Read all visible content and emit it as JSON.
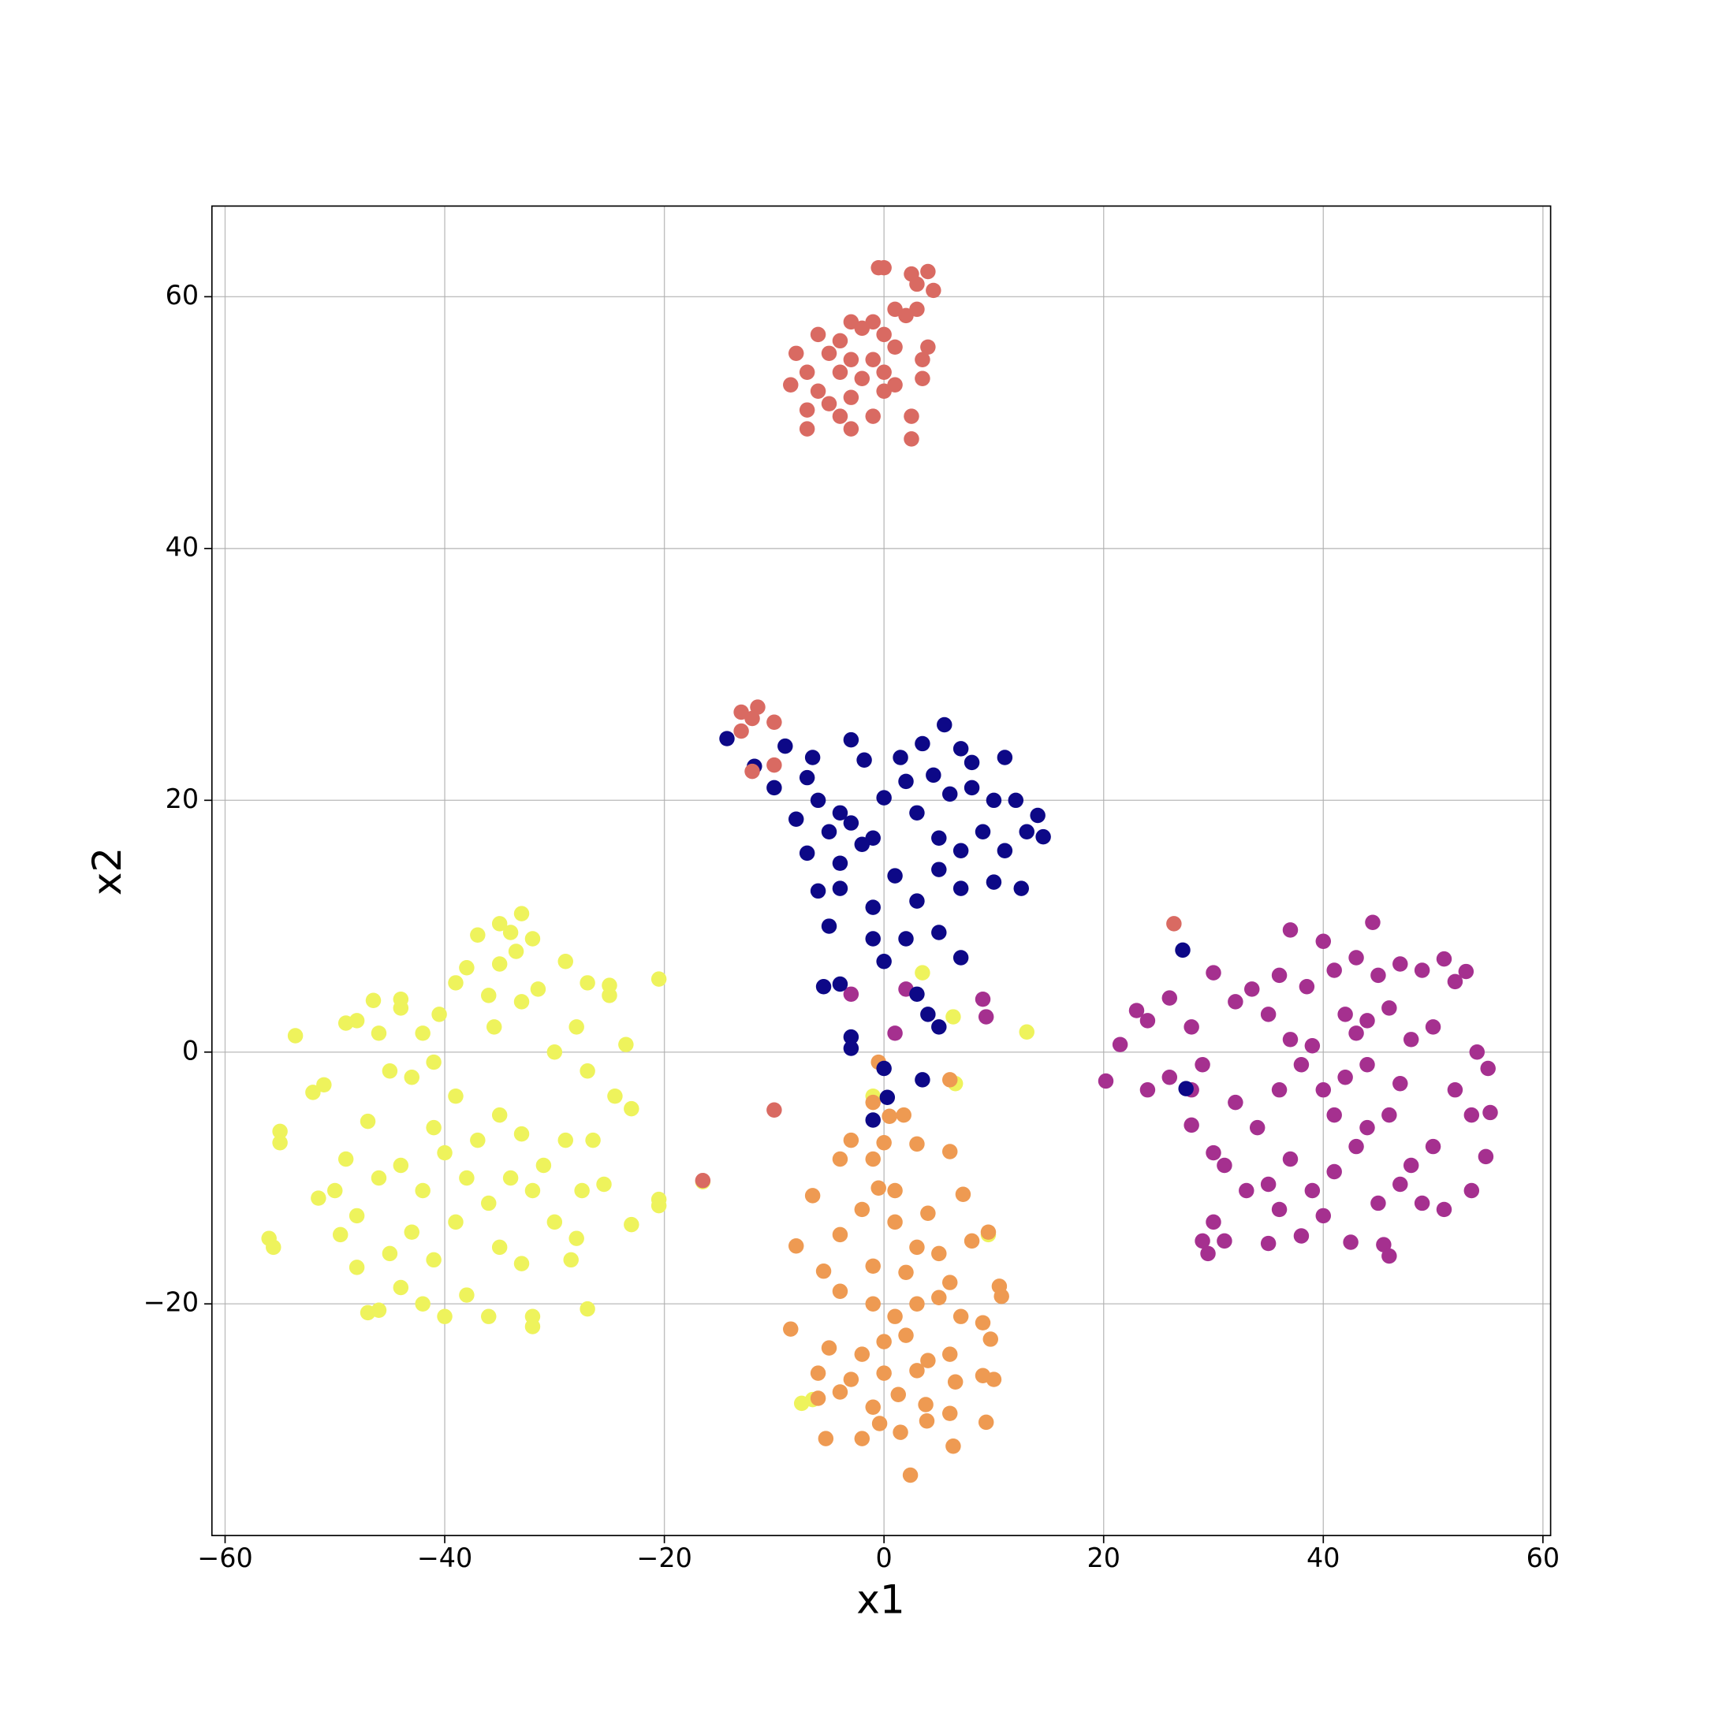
{
  "chart_data": {
    "type": "scatter",
    "xlabel": "x1",
    "ylabel": "x2",
    "xlim": [
      -61.2,
      60.7
    ],
    "ylim": [
      -38.4,
      67.2
    ],
    "xticks": [
      {
        "value": -60,
        "label": "−60"
      },
      {
        "value": -40,
        "label": "−40"
      },
      {
        "value": -20,
        "label": "−20"
      },
      0,
      20,
      40,
      60
    ],
    "yticks": [
      {
        "value": -20,
        "label": "−20"
      },
      0,
      20,
      40,
      60
    ],
    "grid": true,
    "series": [
      {
        "color": "#eef35c",
        "x": [
          -53.6,
          -55,
          -55,
          -56,
          -55.6,
          -52,
          -51,
          -49,
          -48,
          -46.5,
          -46,
          -44,
          -44,
          -42,
          -40.5,
          -41,
          -39,
          -38,
          -37,
          -35,
          -34,
          -33,
          -32,
          -33.5,
          -35,
          -36,
          -35.5,
          -33,
          -31.5,
          -30,
          -29,
          -28,
          -27,
          -25,
          -25,
          -23.5,
          -20.5,
          -27,
          -24.5,
          -23,
          -26.5,
          -29,
          -31,
          -33,
          -35,
          -37,
          -39,
          -41,
          -43,
          -45,
          -47,
          -49,
          -50,
          -51.5,
          -49.5,
          -48,
          -46,
          -44,
          -42,
          -40,
          -38,
          -36,
          -34,
          -32,
          -30,
          -27.5,
          -25.5,
          -23,
          -20.5,
          -20.5,
          -28,
          -28.5,
          -27,
          -32,
          -32,
          -36,
          -38,
          -40,
          -42,
          -44,
          -47,
          -46,
          -48,
          -45,
          -43,
          -41,
          -39,
          -35,
          -33,
          -16.5,
          13,
          9.5,
          6.5,
          6.3,
          3.5,
          -7.5,
          -6.5,
          -1
        ],
        "y": [
          1.3,
          -6.3,
          -7.2,
          -14.8,
          -15.5,
          -3.2,
          -2.6,
          2.3,
          2.5,
          4.1,
          1.5,
          4.2,
          3.5,
          1.5,
          3,
          -0.8,
          5.5,
          6.7,
          9.3,
          10.2,
          9.5,
          11,
          9,
          8,
          7,
          4.5,
          2,
          4,
          5,
          0,
          7.2,
          2,
          5.5,
          5.3,
          4.5,
          0.6,
          5.8,
          -1.5,
          -3.5,
          -4.5,
          -7,
          -7,
          -9,
          -6.5,
          -5,
          -7,
          -3.5,
          -6,
          -2,
          -1.5,
          -5.5,
          -8.5,
          -11,
          -11.6,
          -14.5,
          -13,
          -10,
          -9,
          -11,
          -8,
          -10,
          -12,
          -10,
          -11,
          -13.5,
          -11,
          -10.5,
          -13.7,
          -11.7,
          -12.2,
          -14.8,
          -16.5,
          -20.4,
          -21,
          -21.8,
          -21,
          -19.3,
          -21,
          -20,
          -18.7,
          -20.7,
          -20.5,
          -17.1,
          -16,
          -14.3,
          -16.5,
          -13.5,
          -15.5,
          -16.8,
          -10.3,
          1.6,
          -14.5,
          -2.5,
          2.8,
          6.3,
          -27.9,
          -27.6,
          -3.5
        ]
      },
      {
        "color": "#ee9a52",
        "x": [
          -0.5,
          -1,
          0.5,
          1.8,
          0,
          -3,
          -4,
          3,
          6,
          -1,
          -6.5,
          -0.5,
          1,
          7.2,
          -8,
          -4,
          -2,
          1,
          4,
          3,
          5,
          8,
          9.5,
          -5.5,
          -1,
          2,
          6,
          10.5,
          10.7,
          -4,
          -1,
          1,
          3,
          5,
          7,
          9,
          -8.5,
          -5,
          -2,
          0,
          2,
          4,
          6,
          9.7,
          -6,
          -3,
          0,
          3,
          6.5,
          9,
          10,
          -6,
          -4,
          -1,
          1.3,
          3.8,
          6,
          9.3,
          -5.3,
          -2,
          1.5,
          3.9,
          6.3,
          2.4,
          -0.4,
          6
        ],
        "y": [
          -0.8,
          -4,
          -5.1,
          -5,
          -7.2,
          -7,
          -8.5,
          -7.3,
          -7.9,
          -8.5,
          -11.4,
          -10.8,
          -11,
          -11.3,
          -15.4,
          -14.5,
          -12.5,
          -13.5,
          -12.8,
          -15.5,
          -16,
          -15,
          -14.3,
          -17.4,
          -17,
          -17.5,
          -18.3,
          -18.6,
          -19.4,
          -19,
          -20,
          -21,
          -20,
          -19.5,
          -21,
          -21.5,
          -22,
          -23.5,
          -24,
          -23,
          -22.5,
          -24.5,
          -24,
          -22.8,
          -25.5,
          -26,
          -25.5,
          -25.3,
          -26.2,
          -25.7,
          -26,
          -27.5,
          -27,
          -28.2,
          -27.2,
          -28,
          -28.7,
          -29.4,
          -30.7,
          -30.7,
          -30.2,
          -29.3,
          -31.3,
          -33.6,
          -29.5,
          -2.2
        ]
      },
      {
        "color": "#a5308f",
        "x": [
          20.2,
          21.5,
          23,
          24,
          26,
          24,
          26,
          28,
          29,
          30,
          32,
          33.5,
          35,
          36,
          37,
          38.5,
          40,
          41,
          43,
          44.5,
          45,
          47,
          49,
          51,
          52,
          53,
          42,
          44,
          46,
          48,
          50,
          54,
          55,
          52,
          53.5,
          55.2,
          54.8,
          50,
          48,
          46,
          44,
          42,
          40,
          38,
          36,
          34,
          32,
          30,
          28,
          31,
          33,
          35,
          37,
          39,
          41,
          43,
          45,
          47,
          49,
          51,
          53.5,
          30,
          29,
          29.5,
          31,
          35,
          38,
          42.5,
          45.5,
          46,
          37,
          39,
          41,
          43,
          28,
          1,
          2,
          -3,
          9,
          9.3,
          40,
          36,
          44,
          47
        ],
        "y": [
          -2.3,
          0.6,
          3.3,
          2.5,
          4.3,
          -3,
          -2,
          2,
          -1,
          6.3,
          4,
          5,
          3,
          6.1,
          9.7,
          5.2,
          8.8,
          6.5,
          7.5,
          10.3,
          6.1,
          7,
          6.5,
          7.4,
          5.6,
          6.4,
          3,
          2.5,
          3.5,
          1,
          2,
          0,
          -1.3,
          -3,
          -5,
          -4.8,
          -8.3,
          -7.5,
          -9,
          -5,
          -6,
          -2,
          -3,
          -1,
          -3,
          -6,
          -4,
          -8,
          -5.8,
          -9,
          -11,
          -10.5,
          -8.5,
          -11,
          -9.5,
          -7.5,
          -12,
          -10.5,
          -12,
          -12.5,
          -11,
          -13.5,
          -15,
          -16,
          -15,
          -15.2,
          -14.6,
          -15.1,
          -15.3,
          -16.2,
          1,
          0.5,
          -5,
          1.5,
          -3,
          1.5,
          5,
          4.6,
          4.2,
          2.8,
          -13,
          -12.5,
          -1,
          -2.5
        ]
      },
      {
        "color": "#0d0887",
        "x": [
          -14.3,
          -11.8,
          -9,
          -7,
          -6.5,
          -3,
          -1.8,
          1.5,
          3.5,
          5.5,
          7,
          8,
          11,
          -10,
          -8,
          -6,
          -5,
          -4,
          -3,
          -2,
          -4,
          -1,
          0,
          2,
          3,
          4.5,
          6,
          8,
          10,
          12,
          5,
          7,
          9,
          11,
          13,
          14,
          14.5,
          -7,
          -4,
          -1,
          1,
          3,
          5,
          7,
          10,
          12.5,
          -6,
          -5,
          -1,
          2,
          5,
          7,
          0,
          -4,
          -5.5,
          3,
          5,
          4,
          -3,
          -3,
          0,
          0.3,
          3.5,
          -1,
          27.2,
          27.5
        ],
        "y": [
          24.9,
          22.7,
          24.3,
          21.8,
          23.4,
          24.8,
          23.2,
          23.4,
          24.5,
          26,
          24.1,
          23,
          23.4,
          21,
          18.5,
          20,
          17.5,
          19,
          18.2,
          16.5,
          15,
          17,
          20.2,
          21.5,
          19,
          22,
          20.5,
          21,
          20,
          20,
          17,
          16,
          17.5,
          16,
          17.5,
          18.8,
          17.1,
          15.8,
          13,
          11.5,
          14,
          12,
          14.5,
          13,
          13.5,
          13,
          12.8,
          10,
          9,
          9,
          9.5,
          7.5,
          7.2,
          5.4,
          5.2,
          4.6,
          2,
          3,
          1.2,
          0.3,
          -1.3,
          -3.6,
          -2.2,
          -5.4,
          8.1,
          -2.9
        ]
      },
      {
        "color": "#d96a62",
        "x": [
          0,
          -0.5,
          2.5,
          4,
          3,
          4.5,
          1,
          2,
          3,
          -1,
          -2,
          -3,
          -6,
          -4,
          0,
          1,
          4,
          -5,
          -8,
          -3,
          -1,
          0,
          3.5,
          -7,
          -4,
          -2,
          1,
          3.5,
          -8.5,
          -6,
          -3,
          0,
          -5,
          -7,
          -4,
          -1,
          2.5,
          -7,
          -3,
          2.5,
          -13,
          -12,
          -11.5,
          -10,
          -13,
          -12,
          -10,
          -10,
          -16.5,
          26.4
        ],
        "y": [
          62.3,
          62.3,
          61.8,
          62,
          61,
          60.5,
          59,
          58.5,
          59,
          58,
          57.5,
          58,
          57,
          56.5,
          57,
          56,
          56,
          55.5,
          55.5,
          55,
          55,
          54,
          55,
          54,
          54,
          53.5,
          53,
          53.5,
          53,
          52.5,
          52,
          52.5,
          51.5,
          51,
          50.5,
          50.5,
          50.5,
          49.5,
          49.5,
          48.7,
          27,
          26.5,
          27.4,
          26.2,
          25.5,
          22.3,
          22.8,
          -4.6,
          -10.2,
          10.2
        ]
      }
    ]
  }
}
